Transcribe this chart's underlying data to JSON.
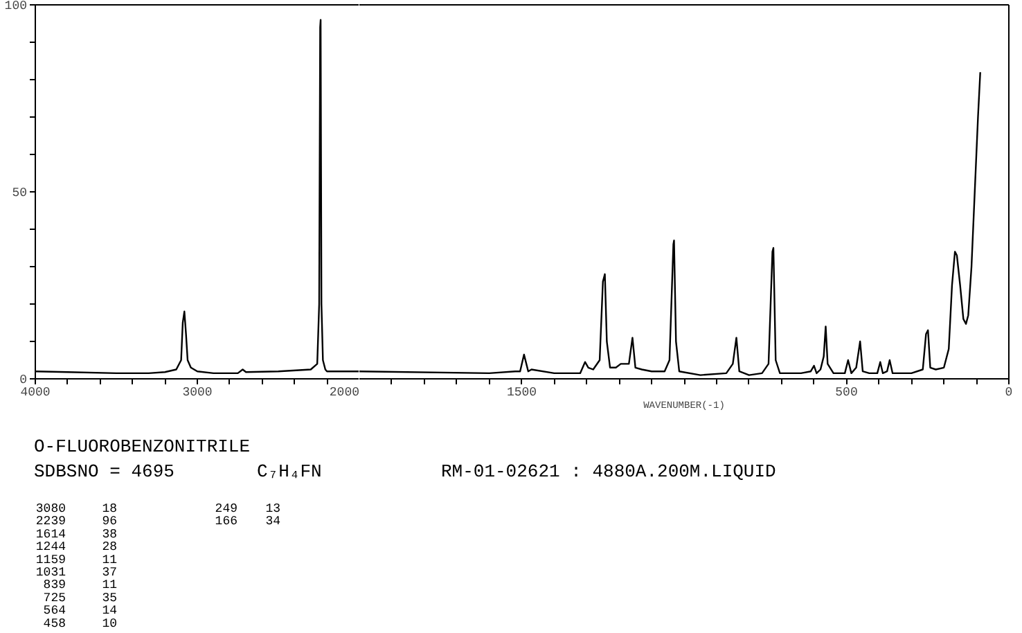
{
  "chart_data": [
    {
      "type": "line",
      "tick_labels": "xy",
      "annotations": [
        "O-FLUOROBENZONITRILE",
        "SDBSNO = 4695",
        "C₇H₄FN",
        "RM-01-02621 : 4880A.200M.LIQUID",
        "3080",
        "18",
        "2239",
        "96",
        "1614",
        "38",
        "1244",
        "28",
        "1159",
        "11",
        "1031",
        "37",
        "839",
        "11",
        "725",
        "35",
        "564",
        "14",
        "458",
        "10",
        "249",
        "13",
        "166",
        "34"
      ],
      "xlim": [
        4000,
        2000
      ],
      "ylim": [
        0,
        100
      ],
      "xticks": [
        4000,
        {
          "value": 3800,
          "label": null
        },
        {
          "value": 3600,
          "label": null
        },
        {
          "value": 3400,
          "label": null
        },
        {
          "value": 3200,
          "label": null
        },
        3000,
        {
          "value": 2800,
          "label": null
        },
        {
          "value": 2600,
          "label": null
        },
        {
          "value": 2400,
          "label": null
        },
        {
          "value": 2200,
          "label": null
        },
        2000
      ],
      "yticks": [
        0,
        {
          "value": 10,
          "label": null
        },
        {
          "value": 20,
          "label": null
        },
        {
          "value": 30,
          "label": null
        },
        {
          "value": 40,
          "label": null
        },
        50,
        {
          "value": 60,
          "label": null
        },
        {
          "value": 70,
          "label": null
        },
        {
          "value": 80,
          "label": null
        },
        {
          "value": 90,
          "label": null
        },
        100
      ],
      "series": [
        {
          "color": "#000000",
          "x": [
            4000,
            3800,
            3500,
            3300,
            3200,
            3130,
            3100,
            3090,
            3080,
            3070,
            3060,
            3040,
            3000,
            2900,
            2750,
            2720,
            2700,
            2500,
            2300,
            2260,
            2248,
            2242,
            2239,
            2234,
            2225,
            2210,
            2200,
            2000
          ],
          "values": [
            2,
            1.8,
            1.5,
            1.5,
            1.8,
            2.5,
            5,
            15,
            18,
            12,
            5,
            3,
            2,
            1.5,
            1.5,
            2.5,
            1.8,
            2,
            2.5,
            4,
            20,
            94,
            96,
            20,
            5,
            2.5,
            2,
            2
          ]
        }
      ]
    },
    {
      "type": "line",
      "tick_labels": "x",
      "xlabel": "WAVENUMBER(-1)",
      "xlim": [
        2000,
        0
      ],
      "ylim": [
        0,
        100
      ],
      "xticks": [
        {
          "value": 1900,
          "label": null
        },
        {
          "value": 1800,
          "label": null
        },
        {
          "value": 1700,
          "label": null
        },
        {
          "value": 1600,
          "label": null
        },
        1500,
        {
          "value": 1400,
          "label": null
        },
        {
          "value": 1300,
          "label": null
        },
        {
          "value": 1200,
          "label": null
        },
        {
          "value": 1100,
          "label": null
        },
        {
          "value": 1000,
          "label": null
        },
        {
          "value": 900,
          "label": null
        },
        {
          "value": 800,
          "label": null
        },
        {
          "value": 700,
          "label": null
        },
        {
          "value": 600,
          "label": null
        },
        500,
        {
          "value": 400,
          "label": null
        },
        {
          "value": 300,
          "label": null
        },
        {
          "value": 200,
          "label": null
        },
        {
          "value": 100,
          "label": null
        },
        0
      ],
      "series": [
        {
          "color": "#000000",
          "x": [
            2000,
            1600,
            1520,
            1505,
            1493,
            1480,
            1470,
            1400,
            1320,
            1305,
            1295,
            1280,
            1260,
            1250,
            1244,
            1238,
            1228,
            1210,
            1195,
            1185,
            1170,
            1159,
            1150,
            1130,
            1100,
            1060,
            1045,
            1033,
            1031,
            1025,
            1015,
            950,
            870,
            850,
            839,
            830,
            800,
            760,
            740,
            728,
            725,
            718,
            705,
            640,
            610,
            600,
            592,
            580,
            570,
            564,
            558,
            540,
            505,
            495,
            485,
            470,
            458,
            450,
            430,
            405,
            396,
            388,
            375,
            367,
            358,
            300,
            265,
            255,
            249,
            242,
            225,
            200,
            185,
            175,
            166,
            160,
            150,
            140,
            132,
            125,
            115,
            105,
            95,
            88
          ],
          "values": [
            2,
            1.5,
            2,
            2,
            6.5,
            2,
            2.5,
            1.5,
            1.5,
            4.5,
            3,
            2.5,
            5,
            26,
            28,
            10,
            3,
            3,
            4,
            4,
            4,
            11,
            3,
            2.5,
            2,
            2,
            5,
            36,
            37,
            10,
            2,
            1,
            1.5,
            4,
            11,
            2,
            1,
            1.5,
            4,
            34,
            35,
            5,
            1.5,
            1.5,
            2,
            3.5,
            1.5,
            2.5,
            6,
            14,
            4,
            1.5,
            1.5,
            5,
            1.5,
            3,
            10,
            2,
            1.5,
            1.5,
            4.5,
            1.5,
            2,
            5,
            1.5,
            1.5,
            2.5,
            12,
            13,
            3,
            2.5,
            3,
            8,
            25,
            34,
            33,
            25,
            16,
            14.7,
            17,
            30,
            50,
            70,
            82
          ]
        }
      ]
    }
  ]
}
